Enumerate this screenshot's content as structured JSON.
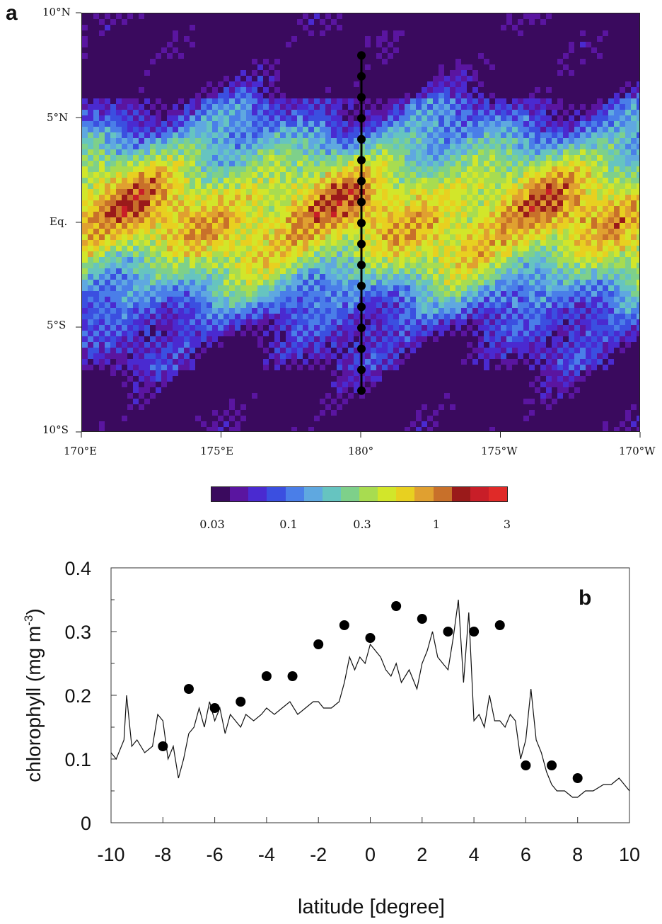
{
  "panel_a": {
    "letter": "a",
    "lat_labels": [
      "10°N",
      "5°N",
      "Eq.",
      "5°S",
      "10°S"
    ],
    "lon_labels": [
      "170°E",
      "175°E",
      "180°",
      "175°W",
      "170°W"
    ],
    "colorbar": {
      "tick_labels": [
        "0.03",
        "0.1",
        "0.3",
        "1",
        "3"
      ],
      "colors": [
        "#3a0a5e",
        "#5a15a0",
        "#4a2ad0",
        "#3b4fe0",
        "#4a7ee8",
        "#5fa8e0",
        "#66c4c0",
        "#7ed08a",
        "#a8dc50",
        "#d2e62a",
        "#e8d020",
        "#e0a030",
        "#c8702a",
        "#9a1a1a",
        "#c81e28",
        "#e02a28"
      ]
    },
    "transect_points_lat": [
      8,
      7,
      6,
      5,
      4,
      3,
      2,
      1,
      0,
      -1,
      -2,
      -3,
      -4,
      -5,
      -6,
      -7,
      -8
    ]
  },
  "chart_data": {
    "type": "line",
    "panel_letter": "b",
    "xlabel": "latitude  [degree]",
    "ylabel": "chlorophyll (mg m",
    "ylabel_sup": "-3",
    "ylabel_close": ")",
    "xlim": [
      -10,
      10
    ],
    "ylim": [
      0,
      0.4
    ],
    "x_ticks": [
      "-10",
      "-8",
      "-6",
      "-4",
      "-2",
      "0",
      "2",
      "4",
      "6",
      "8",
      "10"
    ],
    "y_ticks": [
      "0",
      "0.1",
      "0.2",
      "0.3",
      "0.4"
    ],
    "series": [
      {
        "style": "line",
        "x": [
          -10,
          -9.8,
          -9.5,
          -9.4,
          -9.2,
          -9.0,
          -8.7,
          -8.4,
          -8.2,
          -8.0,
          -7.8,
          -7.6,
          -7.4,
          -7.2,
          -7.0,
          -6.8,
          -6.6,
          -6.4,
          -6.2,
          -6.0,
          -5.8,
          -5.6,
          -5.4,
          -5.2,
          -5.0,
          -4.8,
          -4.5,
          -4.2,
          -4.0,
          -3.7,
          -3.4,
          -3.1,
          -2.8,
          -2.5,
          -2.2,
          -2.0,
          -1.8,
          -1.5,
          -1.2,
          -1.0,
          -0.8,
          -0.6,
          -0.4,
          -0.2,
          0,
          0.2,
          0.4,
          0.6,
          0.8,
          1.0,
          1.2,
          1.5,
          1.8,
          2.0,
          2.2,
          2.4,
          2.6,
          2.8,
          3.0,
          3.2,
          3.4,
          3.6,
          3.8,
          4.0,
          4.2,
          4.4,
          4.6,
          4.8,
          5.0,
          5.2,
          5.4,
          5.6,
          5.8,
          6.0,
          6.2,
          6.4,
          6.6,
          6.8,
          7.0,
          7.2,
          7.5,
          7.8,
          8.0,
          8.3,
          8.6,
          9.0,
          9.3,
          9.6,
          9.8,
          10.0
        ],
        "y": [
          0.11,
          0.1,
          0.13,
          0.2,
          0.12,
          0.13,
          0.11,
          0.12,
          0.17,
          0.16,
          0.1,
          0.12,
          0.07,
          0.1,
          0.14,
          0.15,
          0.18,
          0.15,
          0.19,
          0.16,
          0.18,
          0.14,
          0.17,
          0.16,
          0.15,
          0.17,
          0.16,
          0.17,
          0.18,
          0.17,
          0.18,
          0.19,
          0.17,
          0.18,
          0.19,
          0.19,
          0.18,
          0.18,
          0.19,
          0.22,
          0.26,
          0.24,
          0.26,
          0.25,
          0.28,
          0.27,
          0.26,
          0.24,
          0.23,
          0.25,
          0.22,
          0.24,
          0.21,
          0.25,
          0.27,
          0.3,
          0.26,
          0.25,
          0.24,
          0.29,
          0.35,
          0.22,
          0.33,
          0.16,
          0.17,
          0.15,
          0.2,
          0.16,
          0.16,
          0.15,
          0.17,
          0.16,
          0.1,
          0.13,
          0.21,
          0.13,
          0.11,
          0.08,
          0.06,
          0.05,
          0.05,
          0.04,
          0.04,
          0.05,
          0.05,
          0.06,
          0.06,
          0.07,
          0.06,
          0.05
        ]
      },
      {
        "style": "points",
        "x": [
          -8,
          -7,
          -6,
          -5,
          -4,
          -3,
          -2,
          -1,
          0,
          1,
          2,
          3,
          4,
          5,
          6,
          7,
          8
        ],
        "y": [
          0.12,
          0.21,
          0.18,
          0.19,
          0.23,
          0.23,
          0.28,
          0.31,
          0.29,
          0.34,
          0.32,
          0.3,
          0.3,
          0.31,
          0.09,
          0.09,
          0.07
        ]
      }
    ]
  }
}
